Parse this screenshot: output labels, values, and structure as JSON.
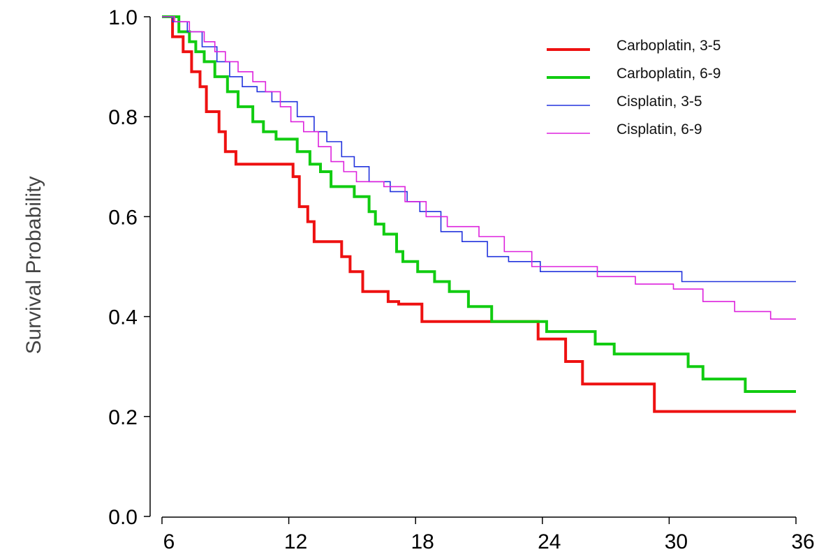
{
  "chart_data": {
    "type": "line",
    "step": true,
    "title": "",
    "xlabel": "",
    "ylabel": "Survival Probability",
    "xlim": [
      5.9,
      36
    ],
    "ylim": [
      0,
      1.0
    ],
    "xticks": [
      6,
      12,
      18,
      24,
      30,
      36
    ],
    "yticks": [
      0.0,
      0.2,
      0.4,
      0.6,
      0.8,
      1.0
    ],
    "xtick_labels": [
      "6",
      "12",
      "18",
      "24",
      "30",
      "36"
    ],
    "ytick_labels": [
      "0.0",
      "0.2",
      "0.4",
      "0.6",
      "0.8",
      "1.0"
    ],
    "grid": false,
    "legend_position": "top-right",
    "series": [
      {
        "name": "Carboplatin, 3-5",
        "color": "#ee1111",
        "x": [
          6,
          6.5,
          7,
          7.4,
          7.8,
          8.1,
          8.7,
          9.0,
          9.5,
          12.2,
          12.5,
          12.9,
          13.2,
          14.5,
          14.9,
          15.5,
          16.7,
          17.2,
          18.3,
          23.8,
          25.1,
          25.9,
          29.3,
          36
        ],
        "y": [
          1.0,
          0.96,
          0.93,
          0.89,
          0.86,
          0.81,
          0.77,
          0.73,
          0.705,
          0.68,
          0.62,
          0.59,
          0.55,
          0.52,
          0.49,
          0.45,
          0.43,
          0.425,
          0.39,
          0.355,
          0.31,
          0.265,
          0.21,
          0.21
        ]
      },
      {
        "name": "Carboplatin, 6-9",
        "color": "#11cc11",
        "x": [
          6,
          6.8,
          7.3,
          7.6,
          8.0,
          8.5,
          9.1,
          9.6,
          10.3,
          10.8,
          11.4,
          12.4,
          13.0,
          13.5,
          14.0,
          15.1,
          15.8,
          16.1,
          16.5,
          17.1,
          17.4,
          18.1,
          18.9,
          19.6,
          20.5,
          21.6,
          24.2,
          26.5,
          27.4,
          30.9,
          31.6,
          33.6,
          36
        ],
        "y": [
          1.0,
          0.97,
          0.95,
          0.93,
          0.91,
          0.88,
          0.85,
          0.82,
          0.79,
          0.77,
          0.755,
          0.73,
          0.705,
          0.69,
          0.66,
          0.64,
          0.61,
          0.585,
          0.565,
          0.53,
          0.51,
          0.49,
          0.47,
          0.45,
          0.42,
          0.39,
          0.37,
          0.345,
          0.325,
          0.3,
          0.275,
          0.25,
          0.25
        ]
      },
      {
        "name": "Cisplatin, 3-5",
        "color": "#2233dd",
        "x": [
          6,
          6.5,
          7.2,
          7.9,
          8.6,
          9.2,
          9.8,
          10.5,
          11.2,
          12.4,
          13.2,
          13.8,
          14.5,
          15.1,
          15.8,
          16.8,
          17.6,
          18.2,
          19.2,
          20.2,
          21.4,
          22.4,
          23.9,
          30.6,
          36
        ],
        "y": [
          1.0,
          0.99,
          0.97,
          0.94,
          0.91,
          0.88,
          0.86,
          0.85,
          0.83,
          0.8,
          0.77,
          0.75,
          0.72,
          0.7,
          0.67,
          0.65,
          0.63,
          0.61,
          0.57,
          0.55,
          0.52,
          0.51,
          0.49,
          0.47,
          0.47
        ]
      },
      {
        "name": "Cisplatin, 6-9",
        "color": "#dd22dd",
        "x": [
          6,
          6.6,
          7.3,
          8.0,
          8.5,
          9.0,
          9.6,
          10.3,
          10.9,
          11.6,
          12.1,
          12.7,
          13.4,
          14.0,
          14.6,
          15.2,
          16.5,
          17.5,
          18.5,
          19.5,
          21.0,
          22.2,
          23.5,
          26.6,
          28.4,
          30.2,
          31.6,
          33.1,
          34.8,
          36
        ],
        "y": [
          1.0,
          0.99,
          0.97,
          0.95,
          0.93,
          0.91,
          0.89,
          0.87,
          0.85,
          0.82,
          0.79,
          0.77,
          0.74,
          0.71,
          0.69,
          0.67,
          0.66,
          0.63,
          0.6,
          0.58,
          0.56,
          0.53,
          0.5,
          0.48,
          0.465,
          0.455,
          0.43,
          0.41,
          0.395,
          0.395
        ]
      }
    ]
  }
}
